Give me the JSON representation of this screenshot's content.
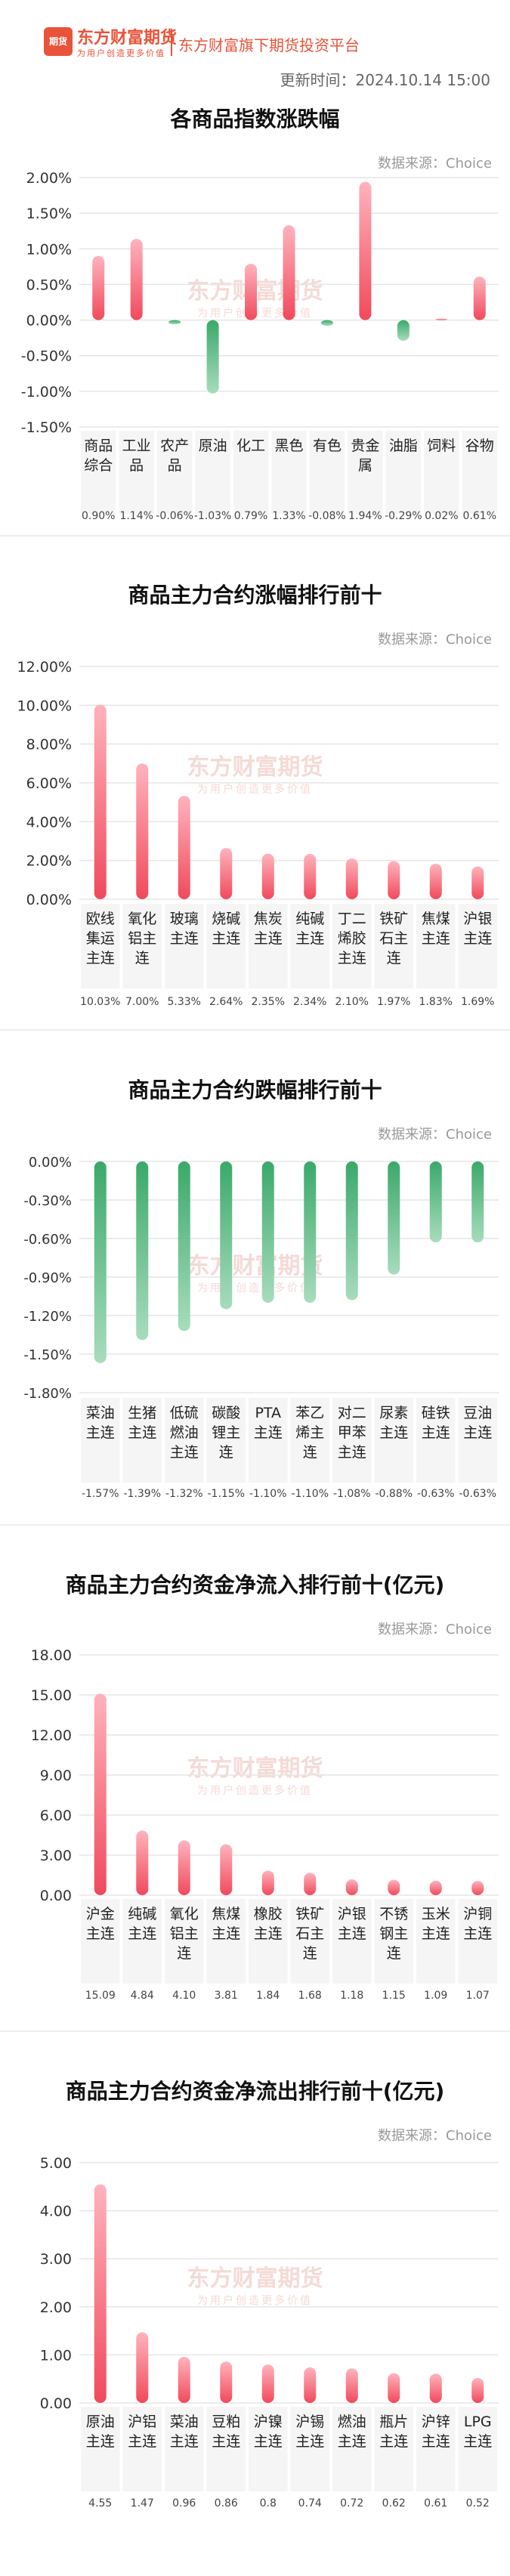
{
  "header": {
    "logo_icon": "期货",
    "brand": "东方财富期货",
    "slogan": "为用户创造更多价值",
    "platform": "东方财富旗下期货投资平台",
    "update_time": "更新时间：2024.10.14 15:00"
  },
  "watermark": {
    "brand": "东方财富期货",
    "slogan": "为用户创造更多价值"
  },
  "colors": {
    "up": "#f04a5c",
    "down": "#4eb97a",
    "brand": "#e8533a"
  },
  "sections": [
    {
      "title": "各商品指数涨跌幅",
      "source": "数据来源：Choice"
    },
    {
      "title": "商品主力合约涨幅排行前十",
      "source": "数据来源：Choice"
    },
    {
      "title": "商品主力合约跌幅排行前十",
      "source": "数据来源：Choice"
    },
    {
      "title": "商品主力合约资金净流入排行前十(亿元)",
      "source": "数据来源：Choice"
    },
    {
      "title": "商品主力合约资金净流出排行前十(亿元)",
      "source": "数据来源：Choice"
    }
  ],
  "chart_data": [
    {
      "type": "bar",
      "categories": [
        "商品综合",
        "工业品",
        "农产品",
        "原油",
        "化工",
        "黑色",
        "有色",
        "贵金属",
        "油脂",
        "饲料",
        "谷物"
      ],
      "values": [
        0.9,
        1.14,
        -0.06,
        -1.03,
        0.79,
        1.33,
        -0.08,
        1.94,
        -0.29,
        0.02,
        0.61
      ],
      "value_labels": [
        "0.90%",
        "1.14%",
        "-0.06%",
        "-1.03%",
        "0.79%",
        "1.33%",
        "-0.08%",
        "1.94%",
        "-0.29%",
        "0.02%",
        "0.61%"
      ],
      "yticks": [
        "2.00%",
        "1.50%",
        "1.00%",
        "0.50%",
        "0.00%",
        "-0.50%",
        "-1.00%",
        "-1.50%"
      ],
      "ylim": [
        -1.5,
        2.0
      ]
    },
    {
      "type": "bar",
      "categories": [
        "欧线集运主连",
        "氧化铝主连",
        "玻璃主连",
        "烧碱主连",
        "焦炭主连",
        "纯碱主连",
        "丁二烯胶主连",
        "铁矿石主连",
        "焦煤主连",
        "沪银主连"
      ],
      "values": [
        10.03,
        7.0,
        5.33,
        2.64,
        2.35,
        2.34,
        2.1,
        1.97,
        1.83,
        1.69
      ],
      "value_labels": [
        "10.03%",
        "7.00%",
        "5.33%",
        "2.64%",
        "2.35%",
        "2.34%",
        "2.10%",
        "1.97%",
        "1.83%",
        "1.69%"
      ],
      "yticks": [
        "12.00%",
        "10.00%",
        "8.00%",
        "6.00%",
        "4.00%",
        "2.00%",
        "0.00%"
      ],
      "ylim": [
        0,
        12
      ]
    },
    {
      "type": "bar",
      "categories": [
        "菜油主连",
        "生猪主连",
        "低硫燃油主连",
        "碳酸锂主连",
        "PTA主连",
        "苯乙烯主连",
        "对二甲苯主连",
        "尿素主连",
        "硅铁主连",
        "豆油主连"
      ],
      "values": [
        -1.57,
        -1.39,
        -1.32,
        -1.15,
        -1.1,
        -1.1,
        -1.08,
        -0.88,
        -0.63,
        -0.63
      ],
      "value_labels": [
        "-1.57%",
        "-1.39%",
        "-1.32%",
        "-1.15%",
        "-1.10%",
        "-1.10%",
        "-1.08%",
        "-0.88%",
        "-0.63%",
        "-0.63%"
      ],
      "yticks": [
        "0.00%",
        "-0.30%",
        "-0.60%",
        "-0.90%",
        "-1.20%",
        "-1.50%",
        "-1.80%"
      ],
      "ylim": [
        -1.8,
        0
      ]
    },
    {
      "type": "bar",
      "categories": [
        "沪金主连",
        "纯碱主连",
        "氧化铝主连",
        "焦煤主连",
        "橡胶主连",
        "铁矿石主连",
        "沪银主连",
        "不锈钢主连",
        "玉米主连",
        "沪铜主连"
      ],
      "values": [
        15.09,
        4.84,
        4.1,
        3.81,
        1.84,
        1.68,
        1.18,
        1.15,
        1.09,
        1.07
      ],
      "value_labels": [
        "15.09",
        "4.84",
        "4.10",
        "3.81",
        "1.84",
        "1.68",
        "1.18",
        "1.15",
        "1.09",
        "1.07"
      ],
      "yticks": [
        "18.00",
        "15.00",
        "12.00",
        "9.00",
        "6.00",
        "3.00",
        "0.00"
      ],
      "ylim": [
        0,
        18
      ]
    },
    {
      "type": "bar",
      "categories": [
        "原油主连",
        "沪铝主连",
        "菜油主连",
        "豆粕主连",
        "沪镍主连",
        "沪锡主连",
        "燃油主连",
        "瓶片主连",
        "沪锌主连",
        "LPG主连"
      ],
      "values": [
        4.55,
        1.47,
        0.96,
        0.86,
        0.8,
        0.74,
        0.72,
        0.62,
        0.61,
        0.52
      ],
      "value_labels": [
        "4.55",
        "1.47",
        "0.96",
        "0.86",
        "0.8",
        "0.74",
        "0.72",
        "0.62",
        "0.61",
        "0.52"
      ],
      "yticks": [
        "5.00",
        "4.00",
        "3.00",
        "2.00",
        "1.00",
        "0.00"
      ],
      "ylim": [
        0,
        5
      ]
    }
  ]
}
